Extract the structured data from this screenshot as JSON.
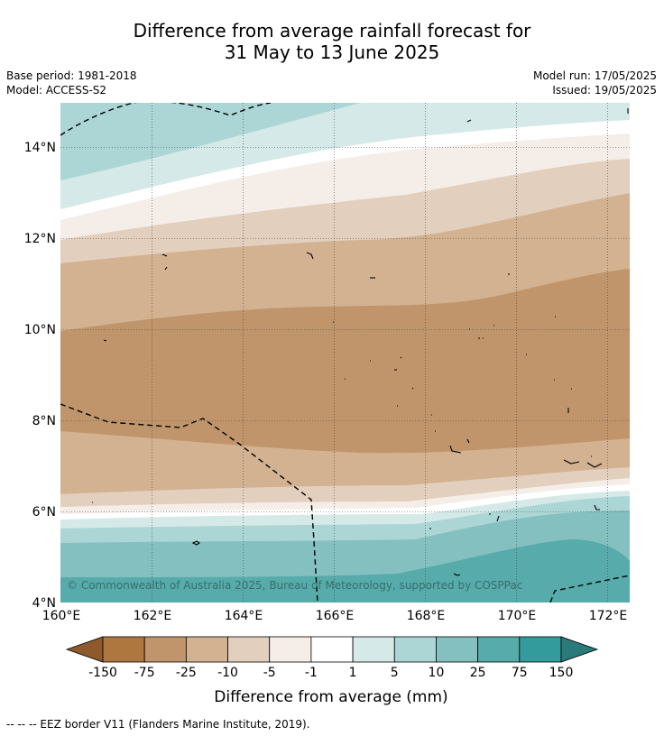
{
  "title": {
    "line1": "Difference from average rainfall forecast for",
    "line2": "31 May to 13 June 2025"
  },
  "info": {
    "base_period": "Base period: 1981-2018",
    "model": "Model: ACCESS-S2",
    "model_run": "Model run: 17/05/2025",
    "issued": "Issued: 19/05/2025"
  },
  "map": {
    "lat_labels": [
      "14°N",
      "12°N",
      "10°N",
      "8°N",
      "6°N",
      "4°N"
    ],
    "lon_labels": [
      "160°E",
      "162°E",
      "164°E",
      "166°E",
      "168°E",
      "170°E",
      "172°E"
    ],
    "copyright": "© Commonwealth of Australia 2025, Bureau of Meteorology, supported by COSPPac"
  },
  "legend": {
    "ticks": [
      "-150",
      "-75",
      "-25",
      "-10",
      "-5",
      "-1",
      "1",
      "5",
      "10",
      "25",
      "75",
      "150"
    ],
    "colors": [
      "#8e5a2c",
      "#ad773f",
      "#c0956b",
      "#d3b292",
      "#e3cfbd",
      "#f5ede7",
      "#ffffff",
      "#d5eae8",
      "#acd6d6",
      "#85c0c0",
      "#58abab",
      "#339b9b",
      "#2a7a7a"
    ],
    "label": "Difference from average (mm)"
  },
  "footer": "-- -- -- EEZ border V11 (Flanders Marine Institute, 2019)."
}
